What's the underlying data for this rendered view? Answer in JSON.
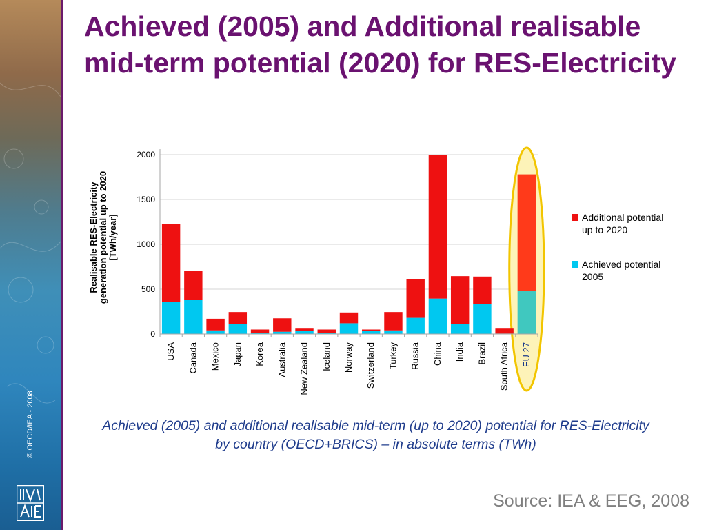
{
  "slide": {
    "title": "Achieved (2005) and Additional realisable mid-term potential (2020) for RES-Electricity",
    "caption": "Achieved (2005) and additional realisable mid-term (up to 2020) potential for RES-Electricity by country (OECD+BRICS) – in absolute terms (TWh)",
    "source": "Source: IEA & EEG, 2008",
    "copyright": "© OECD/IEA - 2008",
    "logo": "iea-logo",
    "colors": {
      "title": "#6a1270",
      "caption": "#1f3c8c",
      "source": "#7f7f7f",
      "sidebar_edge": "#6b1a6b"
    }
  },
  "chart_data": {
    "type": "bar",
    "stacked": true,
    "ylabel": "Realisable RES-Electricity generation potential up to 2020 [TWh/year]",
    "ylim": [
      0,
      2000
    ],
    "yticks": [
      0,
      500,
      1000,
      1500,
      2000
    ],
    "grid": true,
    "legend_position": "right",
    "categories": [
      "USA",
      "Canada",
      "Mexico",
      "Japan",
      "Korea",
      "Australia",
      "New Zealand",
      "Iceland",
      "Norway",
      "Switzerland",
      "Turkey",
      "Russia",
      "China",
      "India",
      "Brazil",
      "South Africa",
      "EU 27"
    ],
    "series": [
      {
        "name": "Achieved potential 2005",
        "color": "#00c8f0",
        "values": [
          360,
          380,
          40,
          110,
          10,
          25,
          35,
          10,
          120,
          35,
          40,
          180,
          395,
          110,
          335,
          5,
          480
        ]
      },
      {
        "name": "Additional potential up to 2020",
        "color": "#ee1111",
        "values": [
          870,
          325,
          130,
          135,
          40,
          150,
          25,
          40,
          120,
          15,
          205,
          430,
          1605,
          535,
          305,
          55,
          1300
        ]
      }
    ],
    "legend_order": [
      "Additional potential up to 2020",
      "Achieved potential 2005"
    ],
    "highlight": {
      "category": "EU 27",
      "fill": "#fdf3b8",
      "stroke": "#f2c500",
      "bar_colors": [
        "#40c8bf",
        "#ff3a1a"
      ],
      "label_color": "#1a3a8a"
    }
  }
}
